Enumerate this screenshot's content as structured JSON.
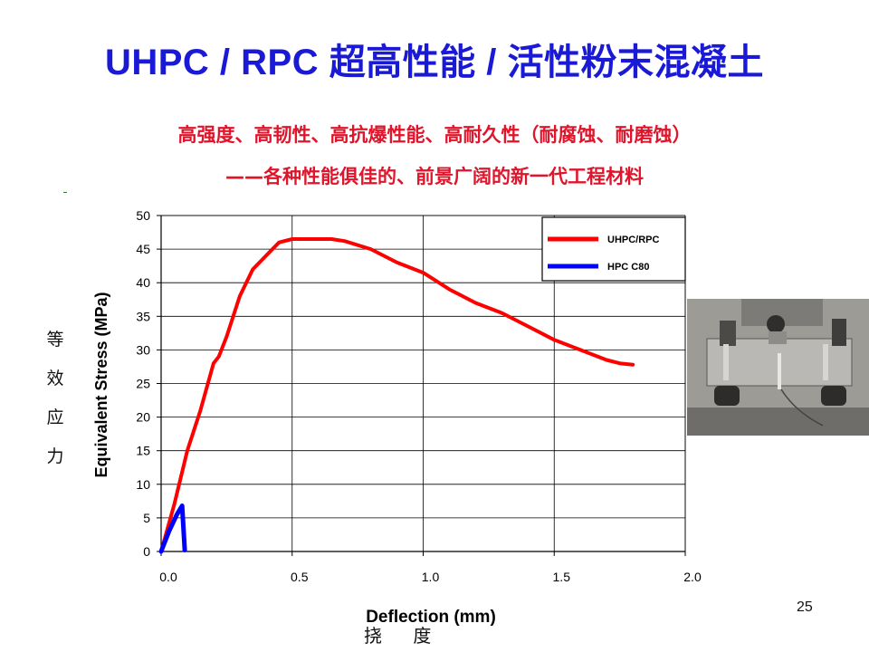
{
  "slide": {
    "title": "UHPC / RPC 超高性能 / 活性粉末混凝土",
    "subtitle_line1": "高强度、高韧性、高抗爆性能、高耐久性（耐腐蚀、耐磨蚀）",
    "subtitle_line2": "——各种性能俱佳的、前景广阔的新一代工程材料",
    "y_label_cn": [
      "等",
      "效",
      "应",
      "力"
    ],
    "x_label_cn": "挠 度",
    "page_number": "25",
    "colors": {
      "title": "#1a1ad6",
      "subtitle": "#e0142a"
    },
    "photo_icon": "flexural-test-photo"
  },
  "chart_data": {
    "type": "line",
    "xlabel": "Deflection (mm)",
    "ylabel": "Equivalent Stress  (MPa)",
    "xlim": [
      0,
      2.0
    ],
    "ylim": [
      0,
      50
    ],
    "x_ticks": [
      "0.0",
      "0.5",
      "1.0",
      "1.5",
      "2.0"
    ],
    "y_ticks": [
      "0",
      "5",
      "10",
      "15",
      "20",
      "25",
      "30",
      "35",
      "40",
      "45",
      "50"
    ],
    "grid": true,
    "legend": "top-right",
    "series": [
      {
        "name": "UHPC/RPC",
        "color": "#ff0000",
        "x": [
          0,
          0.05,
          0.1,
          0.15,
          0.2,
          0.22,
          0.25,
          0.3,
          0.35,
          0.4,
          0.45,
          0.5,
          0.55,
          0.6,
          0.65,
          0.7,
          0.8,
          0.9,
          1.0,
          1.1,
          1.2,
          1.3,
          1.4,
          1.5,
          1.6,
          1.7,
          1.75,
          1.8
        ],
        "y": [
          0,
          7,
          15,
          21,
          28,
          29,
          32,
          38,
          42,
          44,
          46,
          46.5,
          46.5,
          46.5,
          46.5,
          46.2,
          45,
          43,
          41.5,
          39,
          37,
          35.5,
          33.5,
          31.5,
          30,
          28.5,
          28,
          27.8
        ]
      },
      {
        "name": "HPC C80",
        "color": "#0000ff",
        "x": [
          0,
          0.03,
          0.06,
          0.08,
          0.09
        ],
        "y": [
          0,
          3,
          5.5,
          6.8,
          0.2
        ]
      }
    ]
  }
}
